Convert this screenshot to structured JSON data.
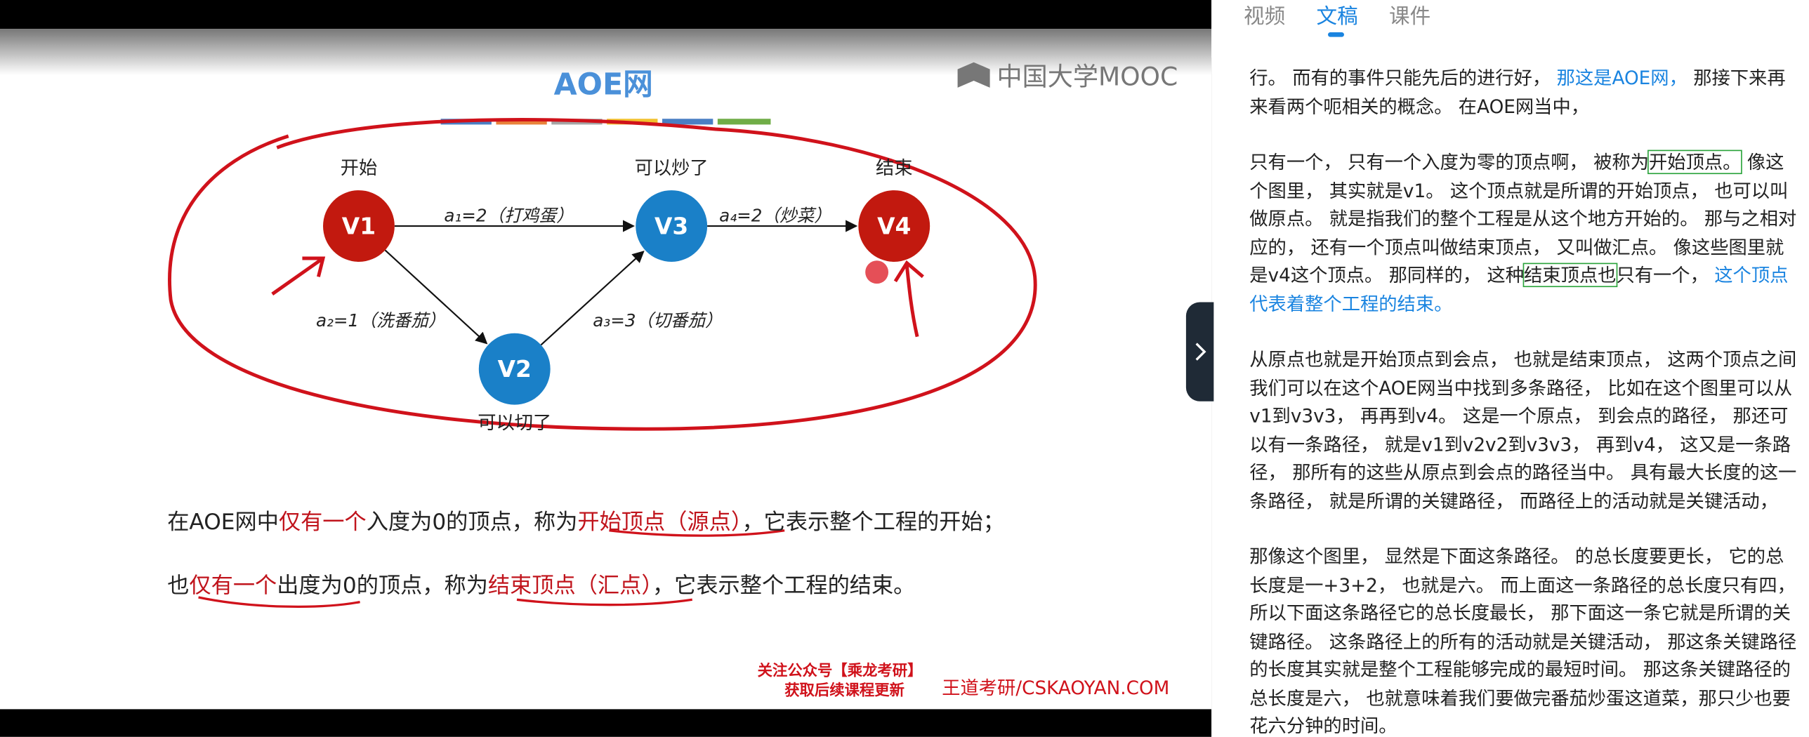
{
  "tabs": [
    {
      "label": "视频",
      "active": false
    },
    {
      "label": "文稿",
      "active": true
    },
    {
      "label": "课件",
      "active": false
    }
  ],
  "slide": {
    "title": "AOE网",
    "logo": "中国大学MOOC",
    "nodes": [
      {
        "label": "V1",
        "caption": "开始",
        "color": "#c2190f"
      },
      {
        "label": "V2",
        "caption": "可以切了",
        "color": "#1a80c8"
      },
      {
        "label": "V3",
        "caption": "可以炒了",
        "color": "#1a80c8"
      },
      {
        "label": "V4",
        "caption": "结束",
        "color": "#c2190f"
      }
    ],
    "edges": [
      {
        "from": 0,
        "to": 2,
        "label": "a₁=2（打鸡蛋）"
      },
      {
        "from": 0,
        "to": 1,
        "label": "a₂=1（洗番茄）"
      },
      {
        "from": 1,
        "to": 2,
        "label": "a₃=3（切番茄）"
      },
      {
        "from": 2,
        "to": 3,
        "label": "a₄=2（炒菜）"
      }
    ],
    "sentences": [
      [
        {
          "text": "在AOE网中"
        },
        {
          "text": "仅有一个",
          "red": true
        },
        {
          "text": "入度为0的顶点，称为"
        },
        {
          "text": "开始顶点（源点）",
          "red": true
        },
        {
          "text": "，它表示整个工程的开始；"
        }
      ],
      [
        {
          "text": "也"
        },
        {
          "text": "仅有一个",
          "red": true
        },
        {
          "text": "出度为0的顶点，称为"
        },
        {
          "text": "结束顶点（汇点）",
          "red": true
        },
        {
          "text": "，它表示整个工程的结束。"
        }
      ]
    ],
    "footer": {
      "line1": "关注公众号【乘龙考研】",
      "line2": "获取后续课程更新",
      "site": "王道考研/CSKAOYAN.COM"
    }
  },
  "transcript": [
    [
      {
        "text": "行。 而有的事件只能先后的进行好， "
      },
      {
        "text": "那这是AOE网，",
        "blue": true
      },
      {
        "text": " 那接下来再来看两个呃相关的概念。 在AOE网当中，"
      }
    ],
    [
      {
        "text": "只有一个， 只有一个入度为零的顶点啊， 被称为"
      },
      {
        "text": "开始顶点。",
        "box": true
      },
      {
        "text": " 像这个图里， 其实就是v1。 这个顶点就是所谓的开始顶点， 也可以叫做原点。 就是指我们的整个工程是从这个地方开始的。 那与之相对应的， 还有一个顶点叫做结束顶点， 又叫做汇点。 像这些图里就是v4这个顶点。 那同样的， 这种"
      },
      {
        "text": "结束顶点也",
        "box": true
      },
      {
        "text": "只有一个， "
      },
      {
        "text": "这个顶点代表着整个工程的结束。",
        "blue": true
      }
    ],
    [
      {
        "text": "从原点也就是开始顶点到会点， 也就是结束顶点， 这两个顶点之间我们可以在这个AOE网当中找到多条路径， 比如在这个图里可以从v1到v3v3， 再再到v4。 这是一个原点， 到会点的路径， 那还可以有一条路径， 就是v1到v2v2到v3v3， 再到v4， 这又是一条路径， 那所有的这些从原点到会点的路径当中。 具有最大长度的这一条路径， 就是所谓的关键路径， 而路径上的活动就是关键活动，"
      }
    ],
    [
      {
        "text": "那像这个图里， 显然是下面这条路径。 的总长度要更长， 它的总长度是一+3+2， 也就是六。 而上面这一条路径的总长度只有四， 所以下面这条路径它的总长度最长， 那下面这一条它就是所谓的关键路径。 这条路径上的所有的活动就是关键活动， 那这条关键路径的长度其实就是整个工程能够完成的最短时间。 那这条关键路径的总长度是六， 也就意味着我们要做完番茄炒蛋这道菜，那只少也要花六分钟的时间。"
      }
    ]
  ]
}
